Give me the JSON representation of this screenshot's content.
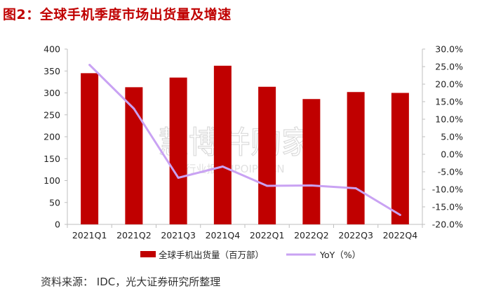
{
  "title": "图2：全球手机季度市场出货量及增速",
  "source": "资料来源： IDC，光大证券研究所整理",
  "watermark": {
    "line1": "慧博并购家",
    "line2": "行业报告 IPOIPO.CN"
  },
  "colors": {
    "bar": "#c00000",
    "line": "#c9a2f3",
    "title": "#c00000"
  },
  "chart_data": {
    "type": "bar",
    "categories": [
      "2021Q1",
      "2021Q2",
      "2021Q3",
      "2021Q4",
      "2022Q1",
      "2022Q2",
      "2022Q3",
      "2022Q4"
    ],
    "series": [
      {
        "name": "全球手机出货量（百万部）",
        "type": "bar",
        "axis": "left",
        "values": [
          345,
          313,
          335,
          362,
          314,
          286,
          302,
          300
        ]
      },
      {
        "name": "YoY（%）",
        "type": "line",
        "axis": "right",
        "values": [
          25.5,
          13.0,
          -6.7,
          -3.5,
          -9.0,
          -8.9,
          -9.7,
          -17.3
        ]
      }
    ],
    "y_left": {
      "min": 0,
      "max": 400,
      "step": 50,
      "ticks": [
        "0",
        "50",
        "100",
        "150",
        "200",
        "250",
        "300",
        "350",
        "400"
      ]
    },
    "y_right": {
      "min": -20,
      "max": 30,
      "step": 5,
      "ticks": [
        "-20.0%",
        "-15.0%",
        "-10.0%",
        "-5.0%",
        "0.0%",
        "5.0%",
        "10.0%",
        "15.0%",
        "20.0%",
        "25.0%",
        "30.0%"
      ]
    },
    "legend_position": "bottom",
    "grid": false
  }
}
